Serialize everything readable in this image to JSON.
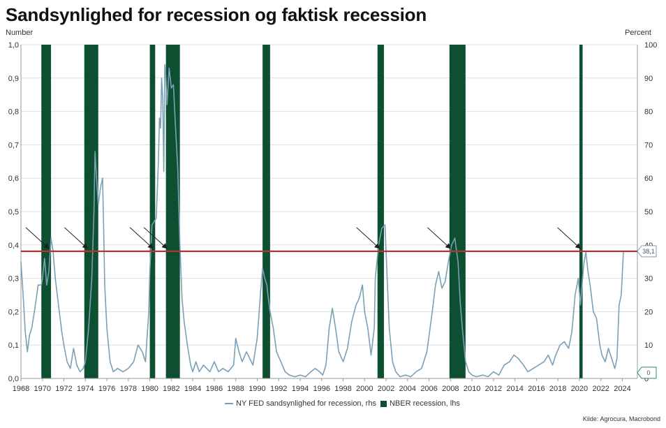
{
  "title": "Sandsynlighed for recession og faktisk recession",
  "left_axis_title": "Number",
  "right_axis_title": "Percent",
  "source": "Kilde: Agrocura, Macrobond",
  "colors": {
    "recession_bar": "#0c4f31",
    "probability_line": "#7b9fb5",
    "threshold_line": "#b53333",
    "grid": "#dedede"
  },
  "chart_data": {
    "type": "line",
    "xlabel": "",
    "ylabel_left": "Number",
    "ylabel_right": "Percent",
    "x_ticks": [
      "1968",
      "1970",
      "1972",
      "1974",
      "1976",
      "1978",
      "1980",
      "1982",
      "1984",
      "1986",
      "1988",
      "1990",
      "1992",
      "1994",
      "1996",
      "1998",
      "2000",
      "2002",
      "2004",
      "2006",
      "2008",
      "2010",
      "2012",
      "2014",
      "2016",
      "2018",
      "2020",
      "2022",
      "2024"
    ],
    "y_left_ticks": [
      "0,0",
      "0,1",
      "0,2",
      "0,3",
      "0,4",
      "0,5",
      "0,6",
      "0,7",
      "0,8",
      "0,9",
      "1,0"
    ],
    "y_right_ticks": [
      "0",
      "10",
      "20",
      "30",
      "40",
      "50",
      "60",
      "70",
      "80",
      "90",
      "100"
    ],
    "ylim_left": [
      0,
      1.0
    ],
    "ylim_right": [
      0,
      100
    ],
    "xlim": [
      1968,
      2025.4
    ],
    "grid": true,
    "legend_position": "bottom",
    "series": [
      {
        "name": "NY FED sandsynlighed for recession, rhs",
        "axis": "right",
        "type": "line",
        "points": [
          [
            1968.0,
            35
          ],
          [
            1968.2,
            25
          ],
          [
            1968.4,
            14
          ],
          [
            1968.6,
            8
          ],
          [
            1968.8,
            13
          ],
          [
            1969.0,
            15
          ],
          [
            1969.3,
            21
          ],
          [
            1969.6,
            28
          ],
          [
            1969.9,
            28
          ],
          [
            1970.0,
            30
          ],
          [
            1970.2,
            36
          ],
          [
            1970.4,
            28
          ],
          [
            1970.6,
            32
          ],
          [
            1970.8,
            42
          ],
          [
            1971.0,
            38
          ],
          [
            1971.2,
            30
          ],
          [
            1971.5,
            22
          ],
          [
            1971.8,
            14
          ],
          [
            1972.0,
            10
          ],
          [
            1972.3,
            5
          ],
          [
            1972.6,
            3
          ],
          [
            1972.9,
            9
          ],
          [
            1973.2,
            4
          ],
          [
            1973.5,
            2
          ],
          [
            1973.8,
            3
          ],
          [
            1974.0,
            5
          ],
          [
            1974.3,
            15
          ],
          [
            1974.6,
            30
          ],
          [
            1974.8,
            50
          ],
          [
            1974.9,
            68
          ],
          [
            1975.0,
            62
          ],
          [
            1975.2,
            52
          ],
          [
            1975.4,
            57
          ],
          [
            1975.6,
            60
          ],
          [
            1975.7,
            45
          ],
          [
            1975.8,
            28
          ],
          [
            1976.0,
            15
          ],
          [
            1976.3,
            5
          ],
          [
            1976.6,
            2
          ],
          [
            1977.0,
            3
          ],
          [
            1977.5,
            2
          ],
          [
            1978.0,
            3
          ],
          [
            1978.5,
            5
          ],
          [
            1978.9,
            10
          ],
          [
            1979.3,
            8
          ],
          [
            1979.6,
            5
          ],
          [
            1979.9,
            20
          ],
          [
            1980.0,
            32
          ],
          [
            1980.2,
            46
          ],
          [
            1980.4,
            47
          ],
          [
            1980.6,
            48
          ],
          [
            1980.8,
            65
          ],
          [
            1980.9,
            78
          ],
          [
            1981.0,
            75
          ],
          [
            1981.1,
            90
          ],
          [
            1981.2,
            84
          ],
          [
            1981.3,
            62
          ],
          [
            1981.4,
            94
          ],
          [
            1981.5,
            90
          ],
          [
            1981.6,
            82
          ],
          [
            1981.8,
            93
          ],
          [
            1982.0,
            87
          ],
          [
            1982.2,
            88
          ],
          [
            1982.4,
            75
          ],
          [
            1982.6,
            63
          ],
          [
            1982.8,
            40
          ],
          [
            1983.0,
            24
          ],
          [
            1983.2,
            17
          ],
          [
            1983.5,
            10
          ],
          [
            1983.8,
            4
          ],
          [
            1984.0,
            2
          ],
          [
            1984.3,
            5
          ],
          [
            1984.6,
            2
          ],
          [
            1985.0,
            4
          ],
          [
            1985.3,
            3
          ],
          [
            1985.6,
            2
          ],
          [
            1986.0,
            5
          ],
          [
            1986.4,
            2
          ],
          [
            1986.8,
            3
          ],
          [
            1987.3,
            2
          ],
          [
            1987.8,
            4
          ],
          [
            1988.0,
            12
          ],
          [
            1988.3,
            8
          ],
          [
            1988.6,
            5
          ],
          [
            1989.0,
            8
          ],
          [
            1989.3,
            6
          ],
          [
            1989.6,
            4
          ],
          [
            1990.0,
            12
          ],
          [
            1990.3,
            25
          ],
          [
            1990.5,
            33
          ],
          [
            1990.7,
            30
          ],
          [
            1990.9,
            28
          ],
          [
            1991.0,
            25
          ],
          [
            1991.2,
            20
          ],
          [
            1991.5,
            15
          ],
          [
            1991.8,
            8
          ],
          [
            1992.2,
            5
          ],
          [
            1992.6,
            2
          ],
          [
            1993.0,
            1
          ],
          [
            1993.5,
            0.5
          ],
          [
            1994.0,
            1
          ],
          [
            1994.5,
            0.5
          ],
          [
            1995.0,
            2
          ],
          [
            1995.4,
            3
          ],
          [
            1995.8,
            2
          ],
          [
            1996.1,
            1
          ],
          [
            1996.4,
            4
          ],
          [
            1996.7,
            15
          ],
          [
            1997.0,
            21
          ],
          [
            1997.3,
            15
          ],
          [
            1997.6,
            8
          ],
          [
            1998.0,
            5
          ],
          [
            1998.4,
            9
          ],
          [
            1998.8,
            17
          ],
          [
            1999.2,
            22
          ],
          [
            1999.5,
            24
          ],
          [
            1999.8,
            28
          ],
          [
            2000.0,
            20
          ],
          [
            2000.3,
            15
          ],
          [
            2000.6,
            7
          ],
          [
            2000.9,
            15
          ],
          [
            2001.0,
            30
          ],
          [
            2001.3,
            40
          ],
          [
            2001.6,
            45
          ],
          [
            2001.9,
            46
          ],
          [
            2002.1,
            30
          ],
          [
            2002.3,
            15
          ],
          [
            2002.6,
            5
          ],
          [
            2002.9,
            2
          ],
          [
            2003.3,
            0.5
          ],
          [
            2003.8,
            1
          ],
          [
            2004.3,
            0.5
          ],
          [
            2004.8,
            2
          ],
          [
            2005.3,
            3
          ],
          [
            2005.8,
            8
          ],
          [
            2006.3,
            20
          ],
          [
            2006.6,
            28
          ],
          [
            2006.9,
            32
          ],
          [
            2007.2,
            27
          ],
          [
            2007.5,
            29
          ],
          [
            2007.8,
            35
          ],
          [
            2008.1,
            40
          ],
          [
            2008.4,
            42
          ],
          [
            2008.7,
            35
          ],
          [
            2008.9,
            23
          ],
          [
            2009.1,
            15
          ],
          [
            2009.4,
            5
          ],
          [
            2009.7,
            2
          ],
          [
            2010.0,
            1
          ],
          [
            2010.4,
            0.5
          ],
          [
            2011.0,
            1
          ],
          [
            2011.5,
            0.5
          ],
          [
            2012.0,
            2
          ],
          [
            2012.5,
            1
          ],
          [
            2013.0,
            4
          ],
          [
            2013.5,
            5
          ],
          [
            2013.9,
            7
          ],
          [
            2014.3,
            6
          ],
          [
            2014.8,
            4
          ],
          [
            2015.2,
            2
          ],
          [
            2015.7,
            3
          ],
          [
            2016.2,
            4
          ],
          [
            2016.7,
            5
          ],
          [
            2017.1,
            7
          ],
          [
            2017.5,
            4
          ],
          [
            2017.8,
            7
          ],
          [
            2018.2,
            10
          ],
          [
            2018.6,
            11
          ],
          [
            2019.0,
            9
          ],
          [
            2019.3,
            14
          ],
          [
            2019.6,
            25
          ],
          [
            2019.9,
            30
          ],
          [
            2020.1,
            22
          ],
          [
            2020.4,
            34
          ],
          [
            2020.6,
            38
          ],
          [
            2020.8,
            32
          ],
          [
            2021.0,
            28
          ],
          [
            2021.3,
            20
          ],
          [
            2021.6,
            18
          ],
          [
            2021.9,
            10
          ],
          [
            2022.1,
            7
          ],
          [
            2022.4,
            5
          ],
          [
            2022.7,
            9
          ],
          [
            2023.0,
            6
          ],
          [
            2023.3,
            3
          ],
          [
            2023.5,
            6
          ],
          [
            2023.7,
            22
          ],
          [
            2023.9,
            25
          ],
          [
            2024.1,
            38
          ]
        ]
      },
      {
        "name": "NBER recession, lhs",
        "axis": "left",
        "type": "bar",
        "periods": [
          [
            1969.9,
            1970.8
          ],
          [
            1973.9,
            1975.2
          ],
          [
            1980.0,
            1980.5
          ],
          [
            1981.5,
            1982.8
          ],
          [
            1990.5,
            1991.2
          ],
          [
            2001.2,
            2001.8
          ],
          [
            2007.9,
            2009.4
          ],
          [
            2020.0,
            2020.3
          ]
        ]
      }
    ],
    "threshold": {
      "value": 38.1,
      "label": "38,1"
    },
    "last_value_marker": {
      "value": 0,
      "label": "0"
    },
    "annotations": {
      "arrows_at": [
        1970.6,
        1974.2,
        1980.3,
        1981.6,
        2001.4,
        2008.0,
        2020.1
      ]
    }
  }
}
